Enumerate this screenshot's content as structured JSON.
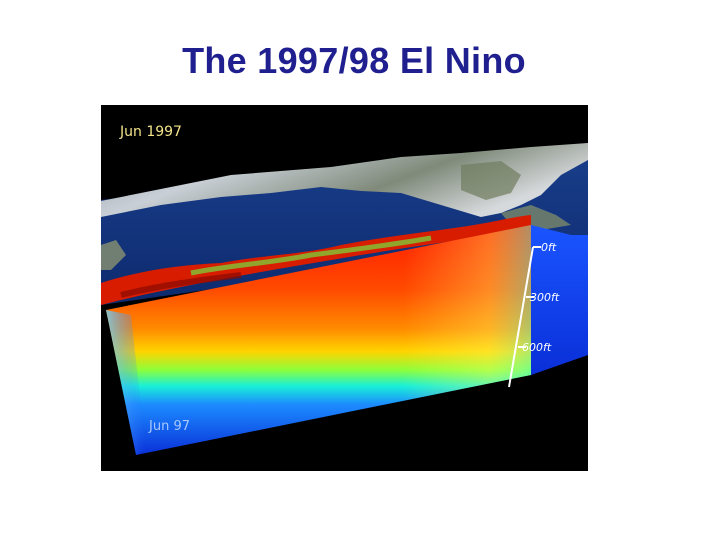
{
  "title": "The 1997/98 El Nino",
  "figure": {
    "date_top": "Jun 1997",
    "date_bottom": "Jun 97",
    "depth_labels": [
      "0ft",
      "300ft",
      "600ft"
    ]
  },
  "colors": {
    "title": "#1f1f8f",
    "date_top": "#f2e38a",
    "ocean_deep": "#0a2fd8",
    "warm_core": "#ff2a00"
  }
}
